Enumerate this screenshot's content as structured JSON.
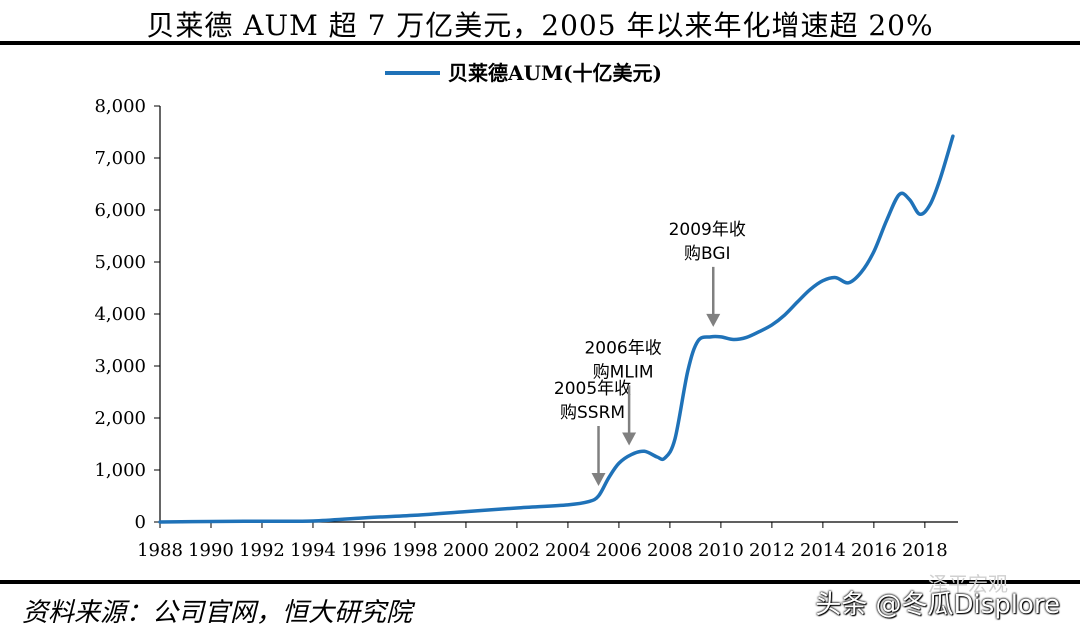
{
  "title": "贝莱德 AUM 超 7 万亿美元，2005 年以来年化增速超 20%",
  "source": "资料来源：公司官网，恒大研究院",
  "watermark": "头条 @冬瓜Displore",
  "watermark_sub": "泽平宏观",
  "colors": {
    "line": "#1f72b8",
    "arrow": "#808080",
    "axis": "#000000"
  },
  "chart_data": {
    "type": "line",
    "legend": {
      "position": "top-center"
    },
    "series": [
      {
        "name": "贝莱德AUM(十亿美元)",
        "x": [
          1988,
          1990,
          1992,
          1994,
          1996,
          1998,
          2000,
          2002,
          2004,
          2004.8,
          2005.2,
          2005.6,
          2006,
          2006.5,
          2007,
          2007.5,
          2007.8,
          2008.2,
          2008.7,
          2009.1,
          2009.6,
          2010,
          2010.5,
          2011,
          2011.5,
          2012,
          2012.5,
          2013,
          2013.5,
          2014,
          2014.5,
          2015,
          2015.5,
          2016,
          2016.5,
          2017,
          2017.4,
          2017.8,
          2018.2,
          2018.6,
          2019.1
        ],
        "y": [
          0,
          10,
          15,
          20,
          80,
          130,
          200,
          270,
          330,
          390,
          500,
          850,
          1130,
          1300,
          1360,
          1250,
          1230,
          1600,
          2900,
          3480,
          3560,
          3560,
          3510,
          3550,
          3660,
          3790,
          3980,
          4230,
          4470,
          4640,
          4700,
          4600,
          4800,
          5200,
          5800,
          6300,
          6200,
          5920,
          6100,
          6600,
          7420
        ]
      }
    ],
    "xlim": [
      1988,
      2019.3
    ],
    "ylim": [
      0,
      8000
    ],
    "x_ticks": [
      "1988",
      "1990",
      "1992",
      "1994",
      "1996",
      "1998",
      "2000",
      "2002",
      "2004",
      "2006",
      "2008",
      "2010",
      "2012",
      "2014",
      "2016",
      "2018"
    ],
    "y_ticks": [
      "0",
      "1,000",
      "2,000",
      "3,000",
      "4,000",
      "5,000",
      "6,000",
      "7,000",
      "8,000"
    ],
    "annotations": [
      {
        "line1": "2005年收",
        "line2": "购SSRM",
        "x": 2005.2,
        "y": 500
      },
      {
        "line1": "2006年收",
        "line2": "购MLIM",
        "x": 2006.4,
        "y": 1280
      },
      {
        "line1": "2009年收",
        "line2": "购BGI",
        "x": 2009.7,
        "y": 3560
      }
    ]
  }
}
